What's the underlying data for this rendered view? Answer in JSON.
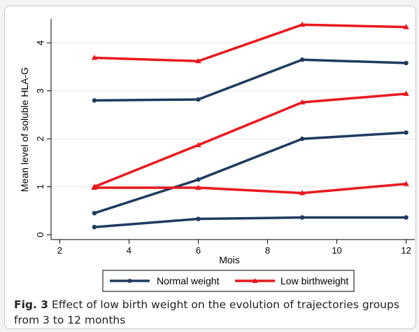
{
  "caption": {
    "label": "Fig. 3",
    "text": " Effect of low birth weight on the evolution of trajectories groups from 3 to 12 months"
  },
  "colors": {
    "normal": "#1f3b5e",
    "low": "#e8191f",
    "axis": "#000000",
    "grid": "#e6e6e6"
  },
  "chart_data": {
    "type": "line",
    "xlabel": "Mois",
    "ylabel": "Mean level of soluble HLA-G",
    "xlim": [
      1.75,
      12.25
    ],
    "ylim": [
      -0.1,
      4.5
    ],
    "xticks": [
      2,
      4,
      6,
      8,
      10,
      12
    ],
    "yticks": [
      0,
      1,
      2,
      3,
      4
    ],
    "grid": "horizontal",
    "legend": {
      "position": "bottom",
      "entries": [
        "Normal weight",
        "Low birthweight"
      ]
    },
    "x": [
      3,
      6,
      9,
      12
    ],
    "series": [
      {
        "group": "normal",
        "marker": "circle",
        "values": [
          2.8,
          2.82,
          3.65,
          3.58
        ]
      },
      {
        "group": "normal",
        "marker": "circle",
        "values": [
          0.45,
          1.15,
          2.0,
          2.13
        ]
      },
      {
        "group": "normal",
        "marker": "circle",
        "values": [
          0.16,
          0.33,
          0.36,
          0.36
        ]
      },
      {
        "group": "low",
        "marker": "triangle",
        "values": [
          3.69,
          3.62,
          4.38,
          4.33
        ]
      },
      {
        "group": "low",
        "marker": "triangle",
        "values": [
          1.0,
          1.87,
          2.76,
          2.94
        ]
      },
      {
        "group": "low",
        "marker": "triangle",
        "values": [
          0.98,
          0.98,
          0.87,
          1.06
        ]
      }
    ]
  }
}
